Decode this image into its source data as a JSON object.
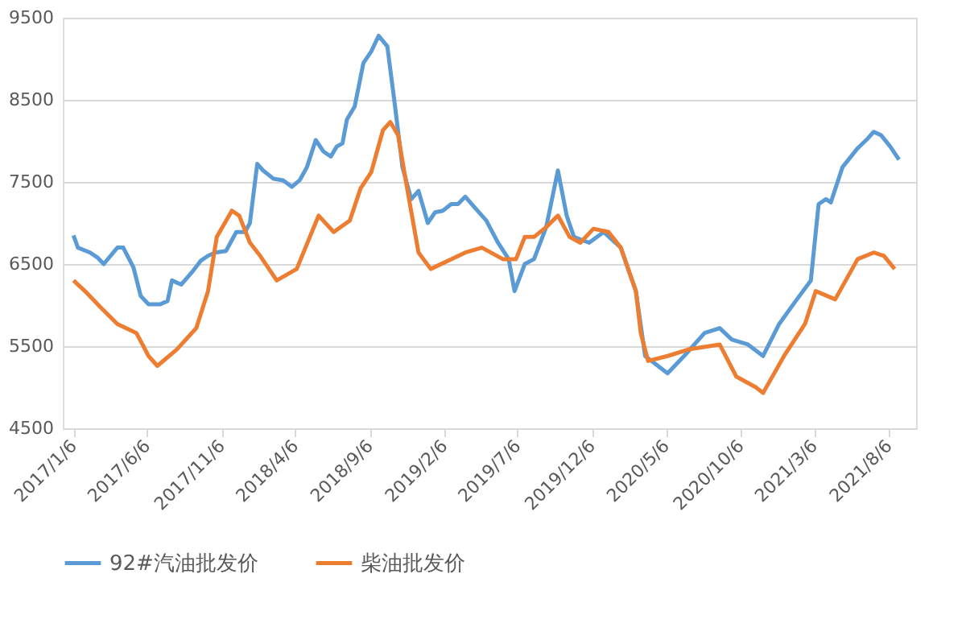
{
  "chart_data": {
    "type": "line",
    "xlim": [
      "2016-12-15",
      "2021-10-01"
    ],
    "xticks": [
      {
        "value": "2017-01-06",
        "label": "2017/1/6"
      },
      {
        "value": "2017-06-06",
        "label": "2017/6/6"
      },
      {
        "value": "2017-11-06",
        "label": "2017/11/6"
      },
      {
        "value": "2018-04-06",
        "label": "2018/4/6"
      },
      {
        "value": "2018-09-06",
        "label": "2018/9/6"
      },
      {
        "value": "2019-02-06",
        "label": "2019/2/6"
      },
      {
        "value": "2019-07-06",
        "label": "2019/7/6"
      },
      {
        "value": "2019-12-06",
        "label": "2019/12/6"
      },
      {
        "value": "2020-05-06",
        "label": "2020/5/6"
      },
      {
        "value": "2020-10-06",
        "label": "2020/10/6"
      },
      {
        "value": "2021-03-06",
        "label": "2021/3/6"
      },
      {
        "value": "2021-08-06",
        "label": "2021/8/6"
      }
    ],
    "ylim": [
      4500,
      9500
    ],
    "yticks": [
      4500,
      5500,
      6500,
      7500,
      8500,
      9500
    ],
    "grid": "y",
    "legend": "bottom",
    "line_style": "solid",
    "marker": "none",
    "series": [
      {
        "name": "92#汽油批发价",
        "color": "#5b9bd5",
        "x": [
          "2017-01-06",
          "2017-01-15",
          "2017-02-09",
          "2017-02-24",
          "2017-03-09",
          "2017-04-06",
          "2017-04-18",
          "2017-05-09",
          "2017-05-24",
          "2017-06-09",
          "2017-07-03",
          "2017-07-18",
          "2017-07-27",
          "2017-08-15",
          "2017-09-06",
          "2017-09-24",
          "2017-10-09",
          "2017-10-24",
          "2017-11-15",
          "2017-12-06",
          "2017-12-24",
          "2018-01-03",
          "2018-01-18",
          "2018-01-30",
          "2018-02-20",
          "2018-03-12",
          "2018-03-30",
          "2018-04-15",
          "2018-04-30",
          "2018-05-18",
          "2018-06-03",
          "2018-06-18",
          "2018-06-30",
          "2018-07-12",
          "2018-07-21",
          "2018-08-06",
          "2018-08-24",
          "2018-09-09",
          "2018-09-24",
          "2018-10-12",
          "2018-10-27",
          "2018-11-12",
          "2018-11-30",
          "2018-12-15",
          "2019-01-03",
          "2019-01-18",
          "2019-02-03",
          "2019-02-20",
          "2019-03-06",
          "2019-03-21",
          "2019-04-09",
          "2019-05-03",
          "2019-05-27",
          "2019-06-18",
          "2019-06-30",
          "2019-07-21",
          "2019-08-09",
          "2019-09-03",
          "2019-09-27",
          "2019-10-15",
          "2019-10-30",
          "2019-11-30",
          "2019-12-30",
          "2020-02-03",
          "2020-03-05",
          "2020-03-24",
          "2020-05-09",
          "2020-06-12",
          "2020-07-24",
          "2020-08-24",
          "2020-09-18",
          "2020-10-21",
          "2020-11-21",
          "2020-12-24",
          "2021-01-27",
          "2021-02-27",
          "2021-03-15",
          "2021-03-30",
          "2021-04-09",
          "2021-05-03",
          "2021-06-03",
          "2021-06-24",
          "2021-07-06",
          "2021-07-21",
          "2021-08-09",
          "2021-08-27"
        ],
        "values": [
          6850,
          6700,
          6640,
          6580,
          6500,
          6700,
          6700,
          6460,
          6110,
          6010,
          6010,
          6050,
          6300,
          6250,
          6400,
          6540,
          6600,
          6640,
          6660,
          6890,
          6890,
          7000,
          7720,
          7640,
          7540,
          7520,
          7440,
          7520,
          7680,
          8010,
          7870,
          7810,
          7930,
          7970,
          8260,
          8420,
          8950,
          9090,
          9280,
          9150,
          8460,
          7680,
          7290,
          7390,
          7000,
          7130,
          7150,
          7230,
          7230,
          7320,
          7190,
          7030,
          6760,
          6560,
          6170,
          6500,
          6560,
          6950,
          7640,
          7090,
          6830,
          6760,
          6890,
          6700,
          6170,
          5380,
          5170,
          5380,
          5660,
          5720,
          5580,
          5520,
          5380,
          5770,
          6050,
          6300,
          7230,
          7290,
          7250,
          7680,
          7910,
          8030,
          8110,
          8070,
          7930,
          7770
        ]
      },
      {
        "name": "柴油批发价",
        "color": "#ed7d31",
        "x": [
          "2017-01-06",
          "2017-02-02",
          "2017-03-03",
          "2017-04-06",
          "2017-05-15",
          "2017-06-09",
          "2017-06-27",
          "2017-08-06",
          "2017-09-15",
          "2017-10-09",
          "2017-10-27",
          "2017-11-27",
          "2017-12-12",
          "2018-01-03",
          "2018-01-24",
          "2018-02-27",
          "2018-04-09",
          "2018-05-24",
          "2018-06-24",
          "2018-07-27",
          "2018-08-18",
          "2018-09-09",
          "2018-10-03",
          "2018-10-18",
          "2018-11-03",
          "2018-11-24",
          "2018-12-15",
          "2019-01-09",
          "2019-03-21",
          "2019-04-24",
          "2019-06-06",
          "2019-07-03",
          "2019-07-21",
          "2019-08-09",
          "2019-09-03",
          "2019-09-27",
          "2019-10-21",
          "2019-11-12",
          "2019-12-09",
          "2020-01-09",
          "2020-02-03",
          "2020-03-05",
          "2020-03-15",
          "2020-03-30",
          "2020-05-09",
          "2020-06-21",
          "2020-08-24",
          "2020-09-27",
          "2020-11-06",
          "2020-11-21",
          "2021-01-03",
          "2021-02-15",
          "2021-03-09",
          "2021-04-18",
          "2021-06-03",
          "2021-07-06",
          "2021-07-27",
          "2021-08-18"
        ],
        "values": [
          6300,
          6150,
          5970,
          5770,
          5660,
          5380,
          5260,
          5460,
          5720,
          6170,
          6830,
          7150,
          7090,
          6760,
          6600,
          6300,
          6440,
          7090,
          6890,
          7030,
          7420,
          7620,
          8130,
          8230,
          8070,
          7340,
          6640,
          6440,
          6640,
          6700,
          6560,
          6560,
          6830,
          6830,
          6950,
          7090,
          6830,
          6760,
          6930,
          6890,
          6700,
          6170,
          5660,
          5320,
          5380,
          5460,
          5520,
          5130,
          5000,
          4930,
          5380,
          5770,
          6170,
          6070,
          6560,
          6640,
          6600,
          6440
        ]
      }
    ]
  }
}
